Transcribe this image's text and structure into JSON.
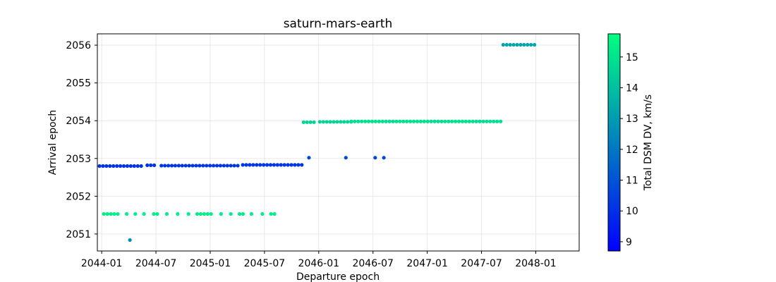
{
  "chart_data": {
    "type": "scatter",
    "title": "saturn-mars-earth",
    "xlabel": "Departure epoch",
    "ylabel": "Arrival epoch",
    "xlim": [
      2043.96,
      2048.4
    ],
    "ylim": [
      2050.55,
      2056.3
    ],
    "x_ticks": [
      {
        "value": 2044.0,
        "label": "2044-01"
      },
      {
        "value": 2044.5,
        "label": "2044-07"
      },
      {
        "value": 2045.0,
        "label": "2045-01"
      },
      {
        "value": 2045.5,
        "label": "2045-07"
      },
      {
        "value": 2046.0,
        "label": "2046-01"
      },
      {
        "value": 2046.5,
        "label": "2046-07"
      },
      {
        "value": 2047.0,
        "label": "2047-01"
      },
      {
        "value": 2047.5,
        "label": "2047-07"
      },
      {
        "value": 2048.0,
        "label": "2048-01"
      }
    ],
    "y_ticks": [
      2051,
      2052,
      2053,
      2054,
      2055,
      2056
    ],
    "grid": true,
    "colorbar": {
      "label": "Total DSM DV, km/s",
      "min": 8.7,
      "max": 15.75,
      "ticks": [
        9,
        10,
        11,
        12,
        13,
        14,
        15
      ],
      "colormap": [
        "#0000ff",
        "#00ff80"
      ]
    },
    "segments": [
      {
        "x_start": 2043.98,
        "x_end": 2044.37,
        "step": 0.032,
        "y": 2052.8,
        "dv": 10.1
      },
      {
        "x_start": 2044.42,
        "x_end": 2044.48,
        "step": 0.032,
        "y": 2052.82,
        "dv": 10.1
      },
      {
        "x_start": 2044.55,
        "x_end": 2045.24,
        "step": 0.032,
        "y": 2052.81,
        "dv": 10.2
      },
      {
        "x_start": 2045.3,
        "x_end": 2045.85,
        "step": 0.032,
        "y": 2052.83,
        "dv": 10.2
      },
      {
        "x_start": 2044.02,
        "x_end": 2044.14,
        "step": 0.032,
        "y": 2051.53,
        "dv": 15.3
      },
      {
        "x_start": 2044.23,
        "x_end": 2044.31,
        "step": 0.08,
        "y": 2051.53,
        "dv": 15.3
      },
      {
        "x_start": 2044.39,
        "x_end": 2044.39,
        "step": 0.1,
        "y": 2051.53,
        "dv": 15.3
      },
      {
        "x_start": 2044.48,
        "x_end": 2044.52,
        "step": 0.032,
        "y": 2051.53,
        "dv": 15.3
      },
      {
        "x_start": 2044.6,
        "x_end": 2044.8,
        "step": 0.1,
        "y": 2051.53,
        "dv": 15.3
      },
      {
        "x_start": 2044.88,
        "x_end": 2045.02,
        "step": 0.032,
        "y": 2051.53,
        "dv": 15.3
      },
      {
        "x_start": 2045.1,
        "x_end": 2045.19,
        "step": 0.09,
        "y": 2051.53,
        "dv": 15.3
      },
      {
        "x_start": 2045.27,
        "x_end": 2045.31,
        "step": 0.032,
        "y": 2051.53,
        "dv": 15.3
      },
      {
        "x_start": 2045.38,
        "x_end": 2045.48,
        "step": 0.1,
        "y": 2051.53,
        "dv": 15.3
      },
      {
        "x_start": 2045.56,
        "x_end": 2045.6,
        "step": 0.032,
        "y": 2051.53,
        "dv": 15.3
      },
      {
        "x_start": 2045.86,
        "x_end": 2045.96,
        "step": 0.032,
        "y": 2053.96,
        "dv": 14.6
      },
      {
        "x_start": 2046.01,
        "x_end": 2046.3,
        "step": 0.032,
        "y": 2053.97,
        "dv": 14.6
      },
      {
        "x_start": 2046.3,
        "x_end": 2047.67,
        "step": 0.032,
        "y": 2053.98,
        "dv": 14.9
      },
      {
        "x_start": 2047.7,
        "x_end": 2047.98,
        "step": 0.032,
        "y": 2056.01,
        "dv": 13.3
      }
    ],
    "points": [
      {
        "x": 2044.26,
        "y": 2050.84,
        "dv": 12.6
      },
      {
        "x": 2045.91,
        "y": 2053.02,
        "dv": 10.6
      },
      {
        "x": 2046.25,
        "y": 2053.02,
        "dv": 10.6
      },
      {
        "x": 2046.52,
        "y": 2053.02,
        "dv": 10.6
      },
      {
        "x": 2046.6,
        "y": 2053.02,
        "dv": 10.6
      }
    ]
  }
}
